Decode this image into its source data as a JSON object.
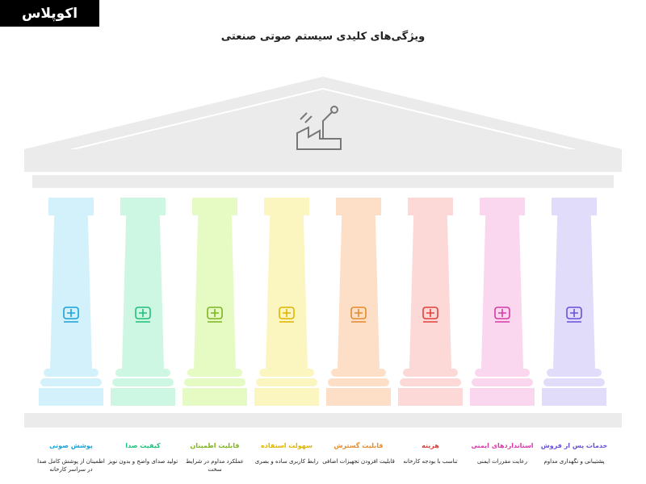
{
  "logo": {
    "text": "اکوپلاس"
  },
  "title": "ویژگی‌های کلیدی سیستم صوتی صنعتی",
  "pillars": [
    {
      "title": "پوشش صوتی",
      "desc": "اطمینان از پوشش کامل صدا در سراسر کارخانه",
      "color": "#1aa3d6",
      "fill": "#d3f1fb",
      "icon": "factory-speaker-icon"
    },
    {
      "title": "کیفیت صدا",
      "desc": "تولید صدای واضح و بدون نویز",
      "color": "#1fbf7a",
      "fill": "#cdf7e3",
      "icon": "sound-wave-icon"
    },
    {
      "title": "قابلیت اطمینان",
      "desc": "عملکرد مداوم در شرایط سخت",
      "color": "#7fb51e",
      "fill": "#e6fbc4",
      "icon": "robust-device-icon"
    },
    {
      "title": "سهولت استفاده",
      "desc": "رابط کاربری ساده و بصری",
      "color": "#e0b400",
      "fill": "#fbf6c0",
      "icon": "settings-interface-icon"
    },
    {
      "title": "قابلیت گسترش",
      "desc": "قابلیت افزودن تجهیزات اضافی",
      "color": "#e58a2a",
      "fill": "#fddfc8",
      "icon": "network-expand-icon"
    },
    {
      "title": "هزینه",
      "desc": "تناسب با بودجه کارخانه",
      "color": "#e0403a",
      "fill": "#fcd8d6",
      "icon": "cost-balance-icon"
    },
    {
      "title": "استانداردهای ایمنی",
      "desc": "رعایت مقررات ایمنی",
      "color": "#d63aa6",
      "fill": "#fbd6ef",
      "icon": "safety-icon"
    },
    {
      "title": "خدمات پس از فروش",
      "desc": "پشتیبانی و نگهداری مداوم",
      "color": "#6a4fd8",
      "fill": "#e2dcfb",
      "icon": "support-technician-icon"
    }
  ]
}
